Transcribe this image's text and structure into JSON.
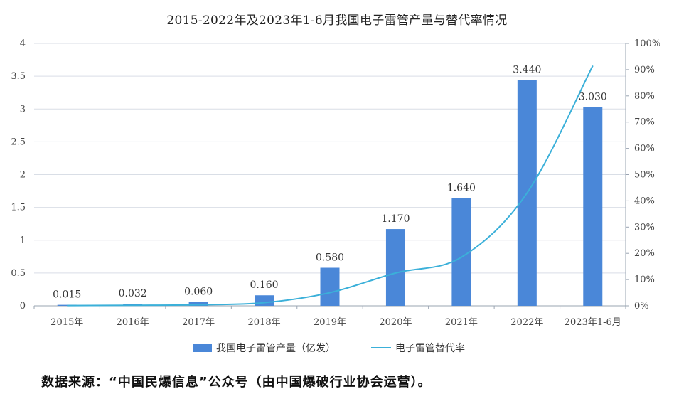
{
  "source_note": "数据来源：“中国民爆信息”公众号（由中国爆破行业协会运营）。",
  "colors": {
    "bar": "#4a87d8",
    "line": "#3bb0d9",
    "grid": "#d9dee6",
    "axis": "#9aa4b2"
  },
  "chart_data": {
    "type": "bar",
    "title": "2015-2022年及2023年1-6月我国电子雷管产量与替代率情况",
    "categories": [
      "2015年",
      "2016年",
      "2017年",
      "2018年",
      "2019年",
      "2020年",
      "2021年",
      "2022年",
      "2023年1-6月"
    ],
    "series": [
      {
        "name": "我国电子雷管产量（亿发）",
        "type": "bar",
        "axis": "left",
        "values": [
          0.015,
          0.032,
          0.06,
          0.16,
          0.58,
          1.17,
          1.64,
          3.44,
          3.03
        ],
        "labels": [
          "0.015",
          "0.032",
          "0.060",
          "0.160",
          "0.580",
          "1.170",
          "1.640",
          "3.440",
          "3.030"
        ]
      },
      {
        "name": "电子雷管替代率",
        "type": "line",
        "axis": "right",
        "values": [
          0.1,
          0.2,
          0.4,
          1.2,
          5.0,
          12.5,
          18.5,
          43.0,
          91.5
        ]
      }
    ],
    "y_left": {
      "range": [
        0,
        4
      ],
      "ticks": [
        "0",
        "0.5",
        "1",
        "1.5",
        "2",
        "2.5",
        "3",
        "3.5",
        "4"
      ]
    },
    "y_right": {
      "range": [
        0,
        100
      ],
      "unit": "%",
      "ticks": [
        "0%",
        "10%",
        "20%",
        "30%",
        "40%",
        "50%",
        "60%",
        "70%",
        "80%",
        "90%",
        "100%"
      ]
    },
    "grid": true,
    "legend": "bottom"
  }
}
